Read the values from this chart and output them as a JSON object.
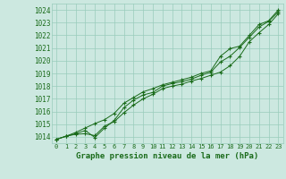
{
  "title": "Graphe pression niveau de la mer (hPa)",
  "bg_color": "#cce8e0",
  "grid_color": "#99ccbb",
  "line_color": "#1a6b1a",
  "x_ticks": [
    0,
    1,
    2,
    3,
    4,
    5,
    6,
    7,
    8,
    9,
    10,
    11,
    12,
    13,
    14,
    15,
    16,
    17,
    18,
    19,
    20,
    21,
    22,
    23
  ],
  "ylim": [
    1013.5,
    1024.5
  ],
  "yticks": [
    1014,
    1015,
    1016,
    1017,
    1018,
    1019,
    1020,
    1021,
    1022,
    1023,
    1024
  ],
  "series": [
    [
      1013.8,
      1014.05,
      1014.2,
      1014.25,
      1014.1,
      1014.85,
      1015.2,
      1015.9,
      1016.5,
      1017.0,
      1017.35,
      1017.8,
      1018.0,
      1018.15,
      1018.4,
      1018.6,
      1018.85,
      1019.1,
      1019.6,
      1020.35,
      1021.5,
      1022.2,
      1022.85,
      1023.7
    ],
    [
      1013.8,
      1014.05,
      1014.25,
      1014.5,
      1013.95,
      1014.7,
      1015.3,
      1016.3,
      1016.9,
      1017.3,
      1017.5,
      1018.0,
      1018.2,
      1018.35,
      1018.55,
      1018.85,
      1019.1,
      1019.9,
      1020.35,
      1021.05,
      1021.85,
      1022.65,
      1023.1,
      1023.85
    ],
    [
      1013.8,
      1014.05,
      1014.35,
      1014.7,
      1015.05,
      1015.35,
      1015.85,
      1016.65,
      1017.1,
      1017.55,
      1017.8,
      1018.1,
      1018.3,
      1018.5,
      1018.7,
      1019.0,
      1019.2,
      1020.35,
      1020.95,
      1021.15,
      1022.0,
      1022.85,
      1023.15,
      1024.0
    ]
  ]
}
